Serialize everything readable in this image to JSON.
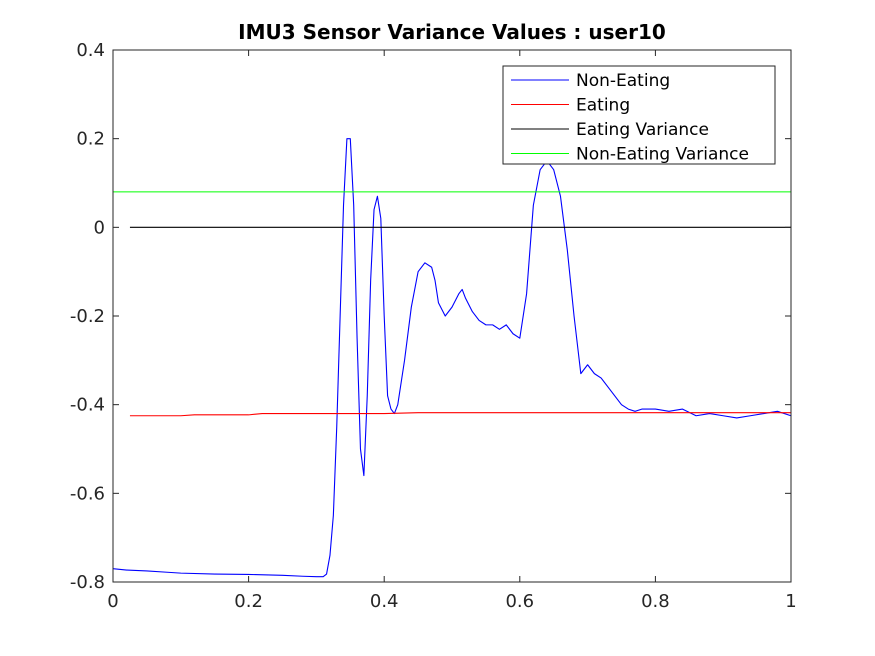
{
  "chart_data": {
    "type": "line",
    "title": "IMU3 Sensor Variance Values : user10",
    "xlabel": "",
    "ylabel": "",
    "xlim": [
      0,
      1
    ],
    "ylim": [
      -0.8,
      0.4
    ],
    "x_ticks": [
      0,
      0.2,
      0.4,
      0.6,
      0.8,
      1
    ],
    "x_tick_labels": [
      "0",
      "0.2",
      "0.4",
      "0.6",
      "0.8",
      "1"
    ],
    "y_ticks": [
      -0.8,
      -0.6,
      -0.4,
      -0.2,
      0,
      0.2,
      0.4
    ],
    "y_tick_labels": [
      "-0.8",
      "-0.6",
      "-0.4",
      "-0.2",
      "0",
      "0.2",
      "0.4"
    ],
    "grid": false,
    "legend_position": "top-right",
    "series": [
      {
        "name": "Non-Eating",
        "color": "#0000ff",
        "x": [
          0.0,
          0.02,
          0.05,
          0.08,
          0.1,
          0.15,
          0.2,
          0.25,
          0.28,
          0.3,
          0.31,
          0.315,
          0.32,
          0.325,
          0.33,
          0.335,
          0.34,
          0.345,
          0.35,
          0.355,
          0.36,
          0.365,
          0.37,
          0.375,
          0.38,
          0.385,
          0.39,
          0.395,
          0.4,
          0.405,
          0.41,
          0.415,
          0.42,
          0.43,
          0.44,
          0.45,
          0.46,
          0.47,
          0.475,
          0.48,
          0.49,
          0.5,
          0.51,
          0.515,
          0.52,
          0.53,
          0.54,
          0.55,
          0.56,
          0.57,
          0.58,
          0.59,
          0.6,
          0.61,
          0.62,
          0.63,
          0.64,
          0.65,
          0.66,
          0.67,
          0.68,
          0.69,
          0.7,
          0.71,
          0.72,
          0.73,
          0.74,
          0.75,
          0.76,
          0.77,
          0.78,
          0.8,
          0.82,
          0.84,
          0.86,
          0.88,
          0.9,
          0.92,
          0.94,
          0.96,
          0.98,
          1.0
        ],
        "y": [
          -0.77,
          -0.773,
          -0.775,
          -0.778,
          -0.78,
          -0.782,
          -0.783,
          -0.785,
          -0.787,
          -0.788,
          -0.788,
          -0.782,
          -0.74,
          -0.65,
          -0.45,
          -0.2,
          0.05,
          0.2,
          0.2,
          0.05,
          -0.25,
          -0.5,
          -0.56,
          -0.38,
          -0.12,
          0.04,
          0.07,
          0.02,
          -0.2,
          -0.38,
          -0.41,
          -0.42,
          -0.4,
          -0.3,
          -0.18,
          -0.1,
          -0.08,
          -0.09,
          -0.12,
          -0.17,
          -0.2,
          -0.18,
          -0.15,
          -0.14,
          -0.16,
          -0.19,
          -0.21,
          -0.22,
          -0.22,
          -0.23,
          -0.22,
          -0.24,
          -0.25,
          -0.15,
          0.05,
          0.13,
          0.15,
          0.13,
          0.07,
          -0.05,
          -0.2,
          -0.33,
          -0.31,
          -0.33,
          -0.34,
          -0.36,
          -0.38,
          -0.4,
          -0.41,
          -0.415,
          -0.41,
          -0.41,
          -0.415,
          -0.41,
          -0.425,
          -0.42,
          -0.425,
          -0.43,
          -0.425,
          -0.42,
          -0.415,
          -0.425
        ]
      },
      {
        "name": "Eating",
        "color": "#ff0000",
        "x": [
          0.025,
          0.1,
          0.12,
          0.2,
          0.22,
          0.3,
          0.4,
          0.45,
          0.6,
          0.8,
          1.0
        ],
        "y": [
          -0.425,
          -0.425,
          -0.423,
          -0.423,
          -0.42,
          -0.42,
          -0.42,
          -0.418,
          -0.418,
          -0.418,
          -0.418
        ]
      },
      {
        "name": "Eating Variance",
        "color": "#000000",
        "x": [
          0.025,
          1.0
        ],
        "y": [
          0.0,
          0.0
        ]
      },
      {
        "name": "Non-Eating Variance",
        "color": "#00ff00",
        "x": [
          0.0,
          1.0
        ],
        "y": [
          0.08,
          0.08
        ]
      }
    ]
  }
}
